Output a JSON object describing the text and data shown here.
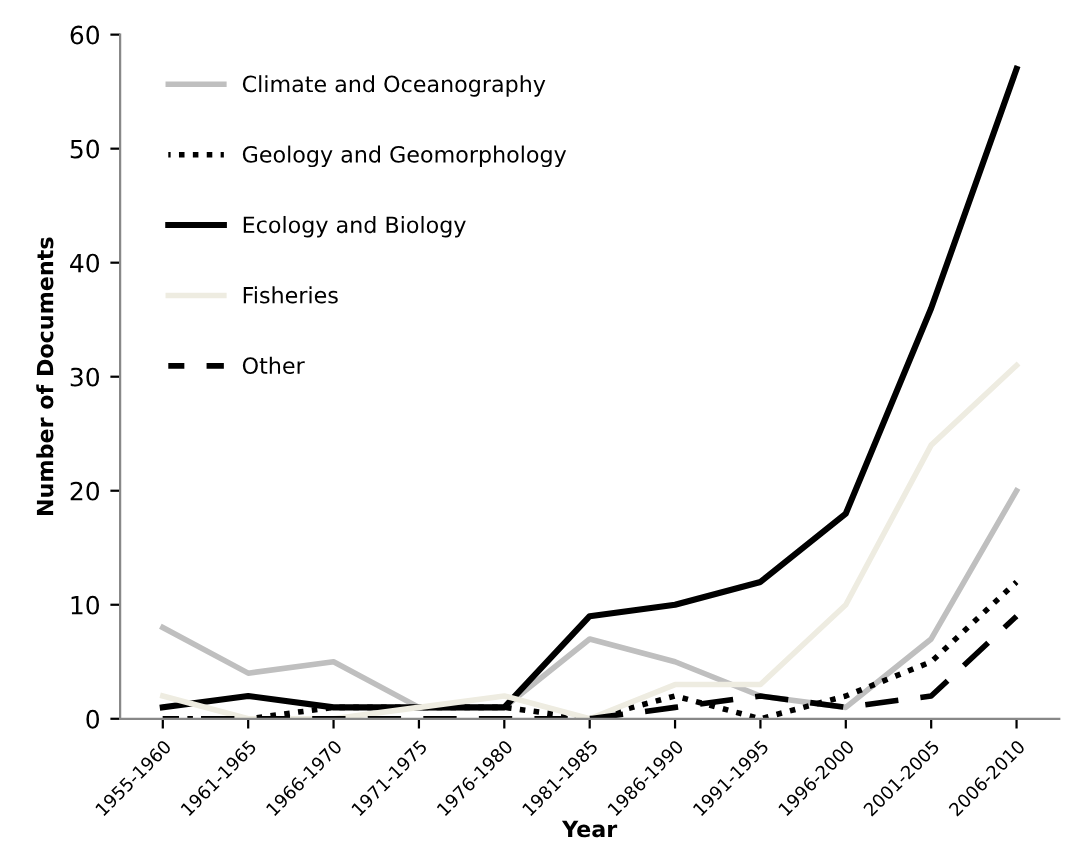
{
  "chart_data": {
    "type": "line",
    "xlabel": "Year",
    "ylabel": "Number of Documents",
    "categories": [
      "1955-1960",
      "1961-1965",
      "1966-1970",
      "1971-1975",
      "1976-1980",
      "1981-1985",
      "1986-1990",
      "1991-1995",
      "1996-2000",
      "2001-2005",
      "2006-2010"
    ],
    "ylim": [
      0,
      60
    ],
    "yticks": [
      0,
      10,
      20,
      30,
      40,
      50,
      60
    ],
    "grid": false,
    "legend": "top left",
    "marker": "none",
    "series": [
      {
        "name": "Climate and Oceanography",
        "color": "#bfbfbf",
        "line_style": "solid",
        "values": [
          8,
          4,
          5,
          1,
          1,
          7,
          5,
          2,
          1,
          7,
          20
        ]
      },
      {
        "name": "Geology and Geomorphology",
        "color": "#000000",
        "line_style": "dotted",
        "values": [
          0,
          0,
          1,
          1,
          1,
          0,
          2,
          0,
          2,
          5,
          12
        ]
      },
      {
        "name": "Ecology and Biology",
        "color": "#000000",
        "line_style": "solid",
        "values": [
          1,
          2,
          1,
          1,
          1,
          9,
          10,
          12,
          18,
          36,
          57
        ]
      },
      {
        "name": "Fisheries",
        "color": "#eeece1",
        "line_style": "solid",
        "values": [
          2,
          0,
          0,
          1,
          2,
          0,
          3,
          3,
          10,
          24,
          31
        ]
      },
      {
        "name": "Other",
        "color": "#000000",
        "line_style": "dashed",
        "values": [
          0,
          0,
          0,
          0,
          0,
          0,
          1,
          2,
          1,
          2,
          9
        ]
      }
    ]
  }
}
